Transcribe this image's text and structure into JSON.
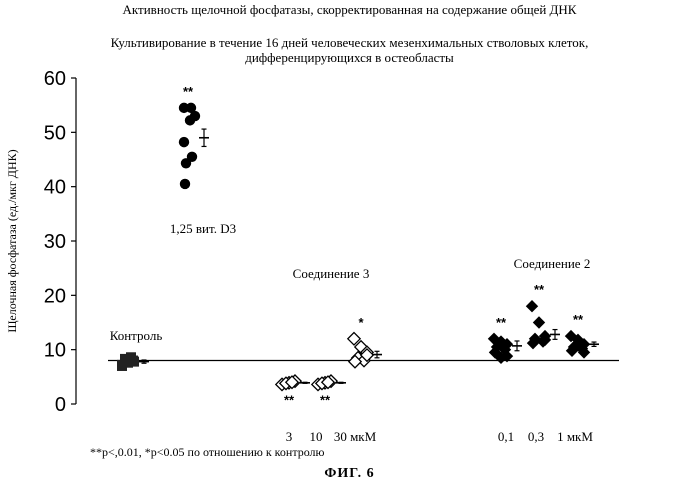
{
  "figure": {
    "title": "Активность щелочной фосфатазы, скорректированная на содержание общей ДНК",
    "subtitle_line1": "Культивирование в течение 16 дней человеческих мезенхимальных стволовых клеток,",
    "subtitle_line2": "дифференцирующихся в остеобласты",
    "footnote": "**p<,0.01, *p<0.05 по отношению к контролю",
    "caption": "ФИГ. 6"
  },
  "chart_data": {
    "type": "scatter",
    "title": "Активность щелочной фосфатазы, скорректированная на содержание общей ДНК",
    "subtitle": "Культивирование в течение 16 дней человеческих мезенхимальных стволовых клеток, дифференцирующихся в остеобласты",
    "ylabel": "Щелочная фосфатаза (ед./мкг ДНК)",
    "xlabel": "",
    "ylim": [
      0,
      60
    ],
    "yticks": [
      0,
      10,
      20,
      30,
      40,
      50,
      60
    ],
    "grid": false,
    "reference_line": {
      "y": 8.0
    },
    "group_labels": [
      "Контроль",
      "1,25 вит. D3",
      "Соединение 3",
      "Соединение 2"
    ],
    "x_tick_labels": [
      "3",
      "10",
      "30 мкМ",
      "0,1",
      "0,3",
      "1 мкМ"
    ],
    "groups": [
      {
        "label": "Контроль",
        "marker": "square",
        "significance": "",
        "values": [
          7.2,
          7.6,
          8.0,
          8.3,
          8.6,
          7.0,
          7.8,
          8.2
        ],
        "mean": 7.8,
        "error": 0.3
      },
      {
        "label": "1,25 вит. D3",
        "marker": "circle",
        "significance": "**",
        "values": [
          54.5,
          54.5,
          53.0,
          52.2,
          48.2,
          45.5,
          44.3,
          40.5
        ],
        "mean": 49.0,
        "error": 1.6
      },
      {
        "label": "3",
        "marker": "open-diamond",
        "significance": "**",
        "values": [
          3.6,
          3.9,
          4.2,
          3.8,
          4.0
        ],
        "mean": 3.9,
        "error": 0.1
      },
      {
        "label": "10",
        "marker": "open-diamond",
        "significance": "**",
        "values": [
          3.6,
          3.9,
          4.2,
          3.8,
          4.0
        ],
        "mean": 3.9,
        "error": 0.1
      },
      {
        "label": "30 мкМ",
        "marker": "open-diamond",
        "significance": "*",
        "values": [
          12.0,
          10.5,
          9.5,
          8.5,
          8.0,
          7.8,
          9.0
        ],
        "mean": 9.1,
        "error": 0.6
      },
      {
        "label": "0,1",
        "marker": "filled-diamond",
        "significance": "**",
        "values": [
          12.0,
          11.5,
          11.0,
          10.5,
          10.0,
          9.5,
          8.8,
          8.5
        ],
        "mean": 10.7,
        "error": 0.9
      },
      {
        "label": "0,3",
        "marker": "filled-diamond",
        "significance": "**",
        "values": [
          18.0,
          15.0,
          12.5,
          12.0,
          11.5,
          11.2,
          11.8
        ],
        "mean": 12.8,
        "error": 0.9
      },
      {
        "label": "1 мкМ",
        "marker": "filled-diamond",
        "significance": "**",
        "values": [
          12.5,
          11.8,
          11.0,
          10.5,
          10.2,
          9.8,
          9.5,
          10.8
        ],
        "mean": 11.0,
        "error": 0.4
      }
    ]
  }
}
